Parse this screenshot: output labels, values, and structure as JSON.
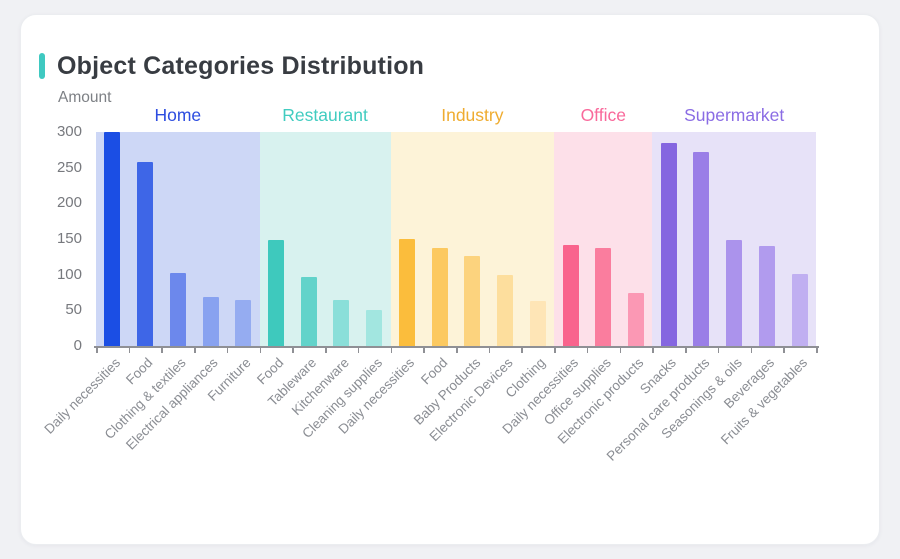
{
  "window": {
    "background": "#f0f1f4",
    "card_background": "#ffffff"
  },
  "header": {
    "title": "Object Categories Distribution",
    "accent_color": "#3fc9c1"
  },
  "chart_data": {
    "type": "bar",
    "title": "Object Categories Distribution",
    "ylabel": "Amount",
    "xlabel": "",
    "ylim": [
      0,
      300
    ],
    "yticks": [
      0,
      50,
      100,
      150,
      200,
      250,
      300
    ],
    "grid": false,
    "legend_position": "none",
    "axis_color": "#8f9095",
    "ytick_label_color": "#77797e",
    "xtick_label_color": "#8a8d93",
    "groups": [
      {
        "name": "Home",
        "name_color": "#2d4de0",
        "band_color": "#cdd7f6",
        "bar_colors": [
          "#1b4ee4",
          "#3e66e7",
          "#6c88ec",
          "#88a2f0",
          "#95acf1"
        ],
        "categories": [
          "Daily necessities",
          "Food",
          "Clothing & textiles",
          "Electrical appliances",
          "Furniture"
        ],
        "values": [
          300,
          258,
          102,
          69,
          64
        ]
      },
      {
        "name": "Restaurant",
        "name_color": "#41ccc0",
        "band_color": "#d8f2ef",
        "bar_colors": [
          "#3ec9bd",
          "#62d3ca",
          "#8adfd9",
          "#a2e6e0"
        ],
        "categories": [
          "Food",
          "Tableware",
          "Kitchenware",
          "Cleaning supplies"
        ],
        "values": [
          148,
          97,
          65,
          50
        ]
      },
      {
        "name": "Industry",
        "name_color": "#efac30",
        "band_color": "#fdf3d8",
        "bar_colors": [
          "#fbbd3c",
          "#fcc960",
          "#fcd37e",
          "#fdde9d",
          "#fee5b6"
        ],
        "categories": [
          "Daily necessities",
          "Food",
          "Baby Products",
          "Electronic Devices",
          "Clothing"
        ],
        "values": [
          150,
          138,
          126,
          100,
          63
        ]
      },
      {
        "name": "Office",
        "name_color": "#f9699b",
        "band_color": "#fde0e9",
        "bar_colors": [
          "#f9648d",
          "#fa7d9e",
          "#fb98b4"
        ],
        "categories": [
          "Daily necessities",
          "Office supplies",
          "Electronic products"
        ],
        "values": [
          142,
          138,
          75
        ]
      },
      {
        "name": "Supermarket",
        "name_color": "#8a6ce4",
        "band_color": "#e7e2f8",
        "bar_colors": [
          "#8566e0",
          "#9a7ee7",
          "#ab93ec",
          "#b19bee",
          "#c0aff1"
        ],
        "categories": [
          "Snacks",
          "Personal care products",
          "Seasonings & oils",
          "Beverages",
          "Fruits & vegetables"
        ],
        "values": [
          285,
          272,
          148,
          140,
          101
        ]
      }
    ]
  }
}
